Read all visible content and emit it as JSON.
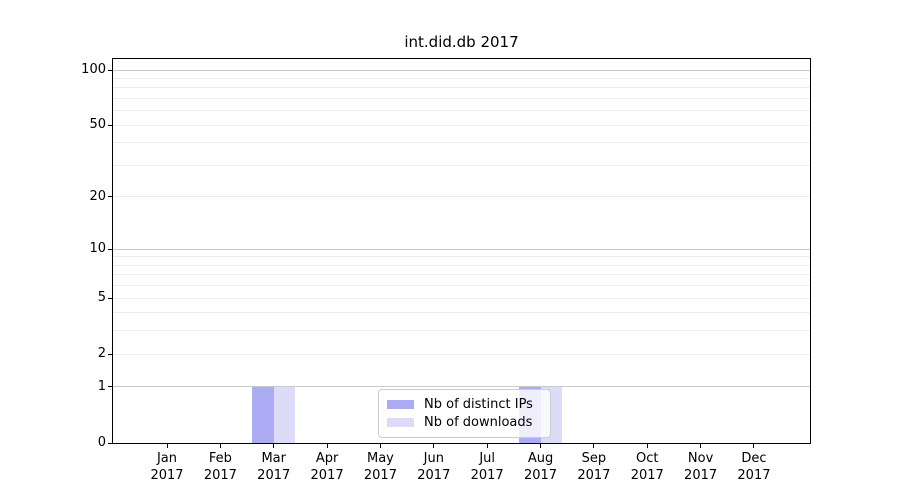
{
  "chart_data": {
    "type": "bar",
    "title": "int.did.db 2017",
    "x_unit_label": "2017",
    "categories": [
      "Jan",
      "Feb",
      "Mar",
      "Apr",
      "May",
      "Jun",
      "Jul",
      "Aug",
      "Sep",
      "Oct",
      "Nov",
      "Dec"
    ],
    "series": [
      {
        "name": "Nb of distinct IPs",
        "color": "#acacf5",
        "values": [
          0,
          0,
          1,
          0,
          0,
          0,
          0,
          1,
          0,
          0,
          0,
          0
        ]
      },
      {
        "name": "Nb of downloads",
        "color": "#dcdcf8",
        "values": [
          0,
          0,
          1,
          0,
          0,
          0,
          0,
          1,
          0,
          0,
          0,
          0
        ]
      }
    ],
    "y_axis": {
      "scale": "log1p",
      "ticks": [
        0,
        1,
        2,
        5,
        10,
        20,
        50,
        100
      ],
      "major_gridlines": [
        1,
        10,
        100
      ],
      "minor_gridlines": [
        2,
        3,
        4,
        5,
        6,
        7,
        8,
        9,
        20,
        30,
        40,
        50,
        60,
        70,
        80,
        90
      ],
      "ylim": [
        0,
        115
      ]
    },
    "legend_position": "lower center-right",
    "grid": true,
    "colors": {
      "major_grid": "#c9c9c9",
      "minor_grid": "#ececec",
      "axis": "#000000",
      "background": "#ffffff"
    }
  }
}
